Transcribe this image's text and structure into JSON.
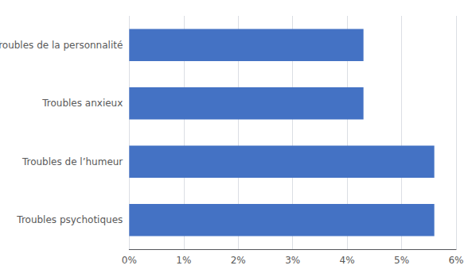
{
  "chart_data": {
    "type": "bar",
    "orientation": "horizontal",
    "categories": [
      "Troubles psychotiques",
      "Troubles de l’humeur",
      "Troubles anxieux",
      "Troubles de la personnalité"
    ],
    "values": [
      0.056,
      0.056,
      0.043,
      0.043
    ],
    "color": "#4472C4",
    "xlim": [
      0,
      0.06
    ],
    "xticks": [
      {
        "value": 0.0,
        "label": "0%"
      },
      {
        "value": 0.01,
        "label": "1%"
      },
      {
        "value": 0.02,
        "label": "2%"
      },
      {
        "value": 0.03,
        "label": "3%"
      },
      {
        "value": 0.04,
        "label": "4%"
      },
      {
        "value": 0.05,
        "label": "5%"
      },
      {
        "value": 0.06,
        "label": "6%"
      }
    ],
    "grid": true
  }
}
